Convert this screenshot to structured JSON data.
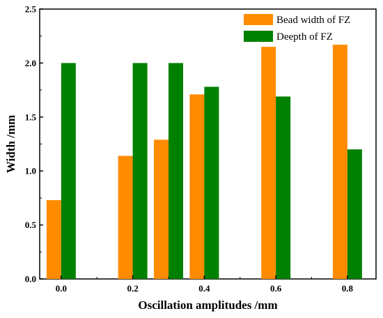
{
  "chart_data": {
    "type": "bar",
    "xlabel": "Oscillation amplitudes /mm",
    "ylabel": "Width /mm",
    "xlim": [
      -0.06,
      0.88
    ],
    "ylim": [
      0,
      2.5
    ],
    "x_ticks": [
      "0.0",
      "0.2",
      "0.4",
      "0.6",
      "0.8"
    ],
    "x_tick_values": [
      0.0,
      0.2,
      0.4,
      0.6,
      0.8
    ],
    "y_ticks": [
      "0.0",
      "0.5",
      "1.0",
      "1.5",
      "2.0",
      "2.5"
    ],
    "y_tick_values": [
      0.0,
      0.5,
      1.0,
      1.5,
      2.0,
      2.5
    ],
    "x": [
      0.0,
      0.2,
      0.3,
      0.4,
      0.6,
      0.8
    ],
    "series": [
      {
        "name": "Bead width of FZ",
        "color": "#FF8C00",
        "values": [
          0.73,
          1.14,
          1.29,
          1.71,
          2.15,
          2.17
        ]
      },
      {
        "name": "Deepth of FZ",
        "color": "#008000",
        "values": [
          2.0,
          2.0,
          2.0,
          1.78,
          1.69,
          1.2
        ]
      }
    ],
    "legend_position": "top-right",
    "grid": false
  }
}
